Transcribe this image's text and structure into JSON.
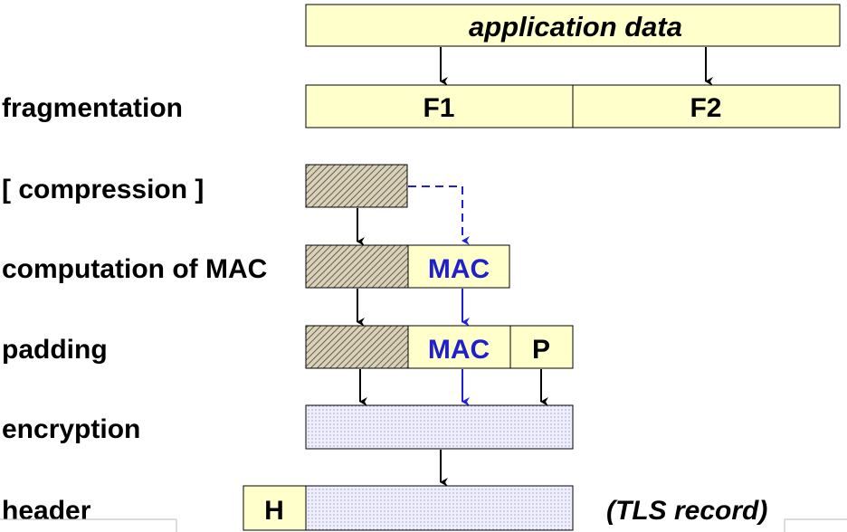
{
  "app_data_label": "application data",
  "fragments": [
    "F1",
    "F2"
  ],
  "steps": {
    "fragmentation": "fragmentation",
    "compression": "[ compression ]",
    "mac": "computation of MAC",
    "padding": "padding",
    "encryption": "encryption",
    "header": "header"
  },
  "mac_label": "MAC",
  "padding_label": "P",
  "header_label": "H",
  "record_label": "(TLS record)",
  "colors": {
    "box_fill": "#ffffcc",
    "mac_text": "#1f1fcc",
    "mac_arrow": "#1f1fdd",
    "encrypted_fill": "#e8e8ff",
    "hatch": "#7a6a50"
  }
}
